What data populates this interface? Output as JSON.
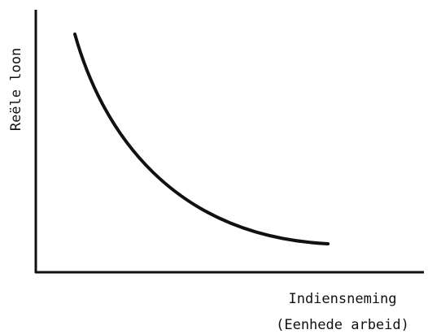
{
  "y_axis_label": "Reële loon",
  "x_axis_label": [
    "Indiensneming",
    "(Eenhede arbeid)"
  ]
}
